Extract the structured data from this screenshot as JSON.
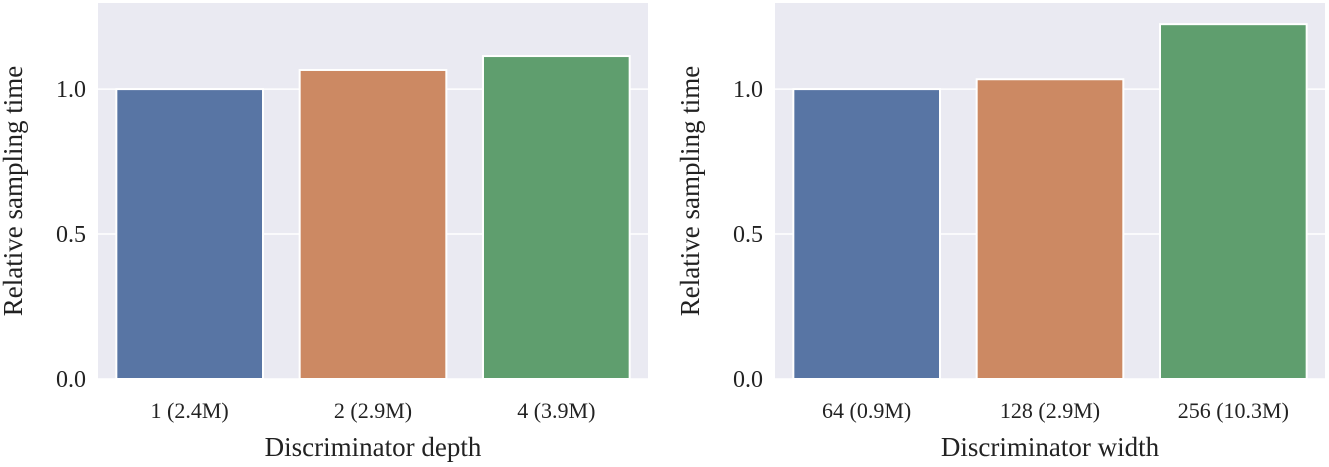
{
  "chart_data": [
    {
      "type": "bar",
      "categories": [
        "1 (2.4M)",
        "2 (2.9M)",
        "4 (3.9M)"
      ],
      "values": [
        1.0,
        1.066,
        1.114
      ],
      "xlabel": "Discriminator depth",
      "ylabel": "Relative sampling time",
      "ylim": [
        0,
        1.297
      ],
      "yticks": [
        "0.0",
        "0.5",
        "1.0"
      ],
      "ytick_values": [
        0,
        0.5,
        1.0
      ],
      "grid": true,
      "colors": [
        "#5875a4",
        "#cc8963",
        "#5f9e6e"
      ]
    },
    {
      "type": "bar",
      "categories": [
        "64 (0.9M)",
        "128 (2.9M)",
        "256 (10.3M)"
      ],
      "values": [
        1.0,
        1.034,
        1.224
      ],
      "xlabel": "Discriminator width",
      "ylabel": "Relative sampling time",
      "ylim": [
        0,
        1.297
      ],
      "yticks": [
        "0.0",
        "0.5",
        "1.0"
      ],
      "ytick_values": [
        0,
        0.5,
        1.0
      ],
      "grid": true,
      "colors": [
        "#5875a4",
        "#cc8963",
        "#5f9e6e"
      ]
    }
  ]
}
